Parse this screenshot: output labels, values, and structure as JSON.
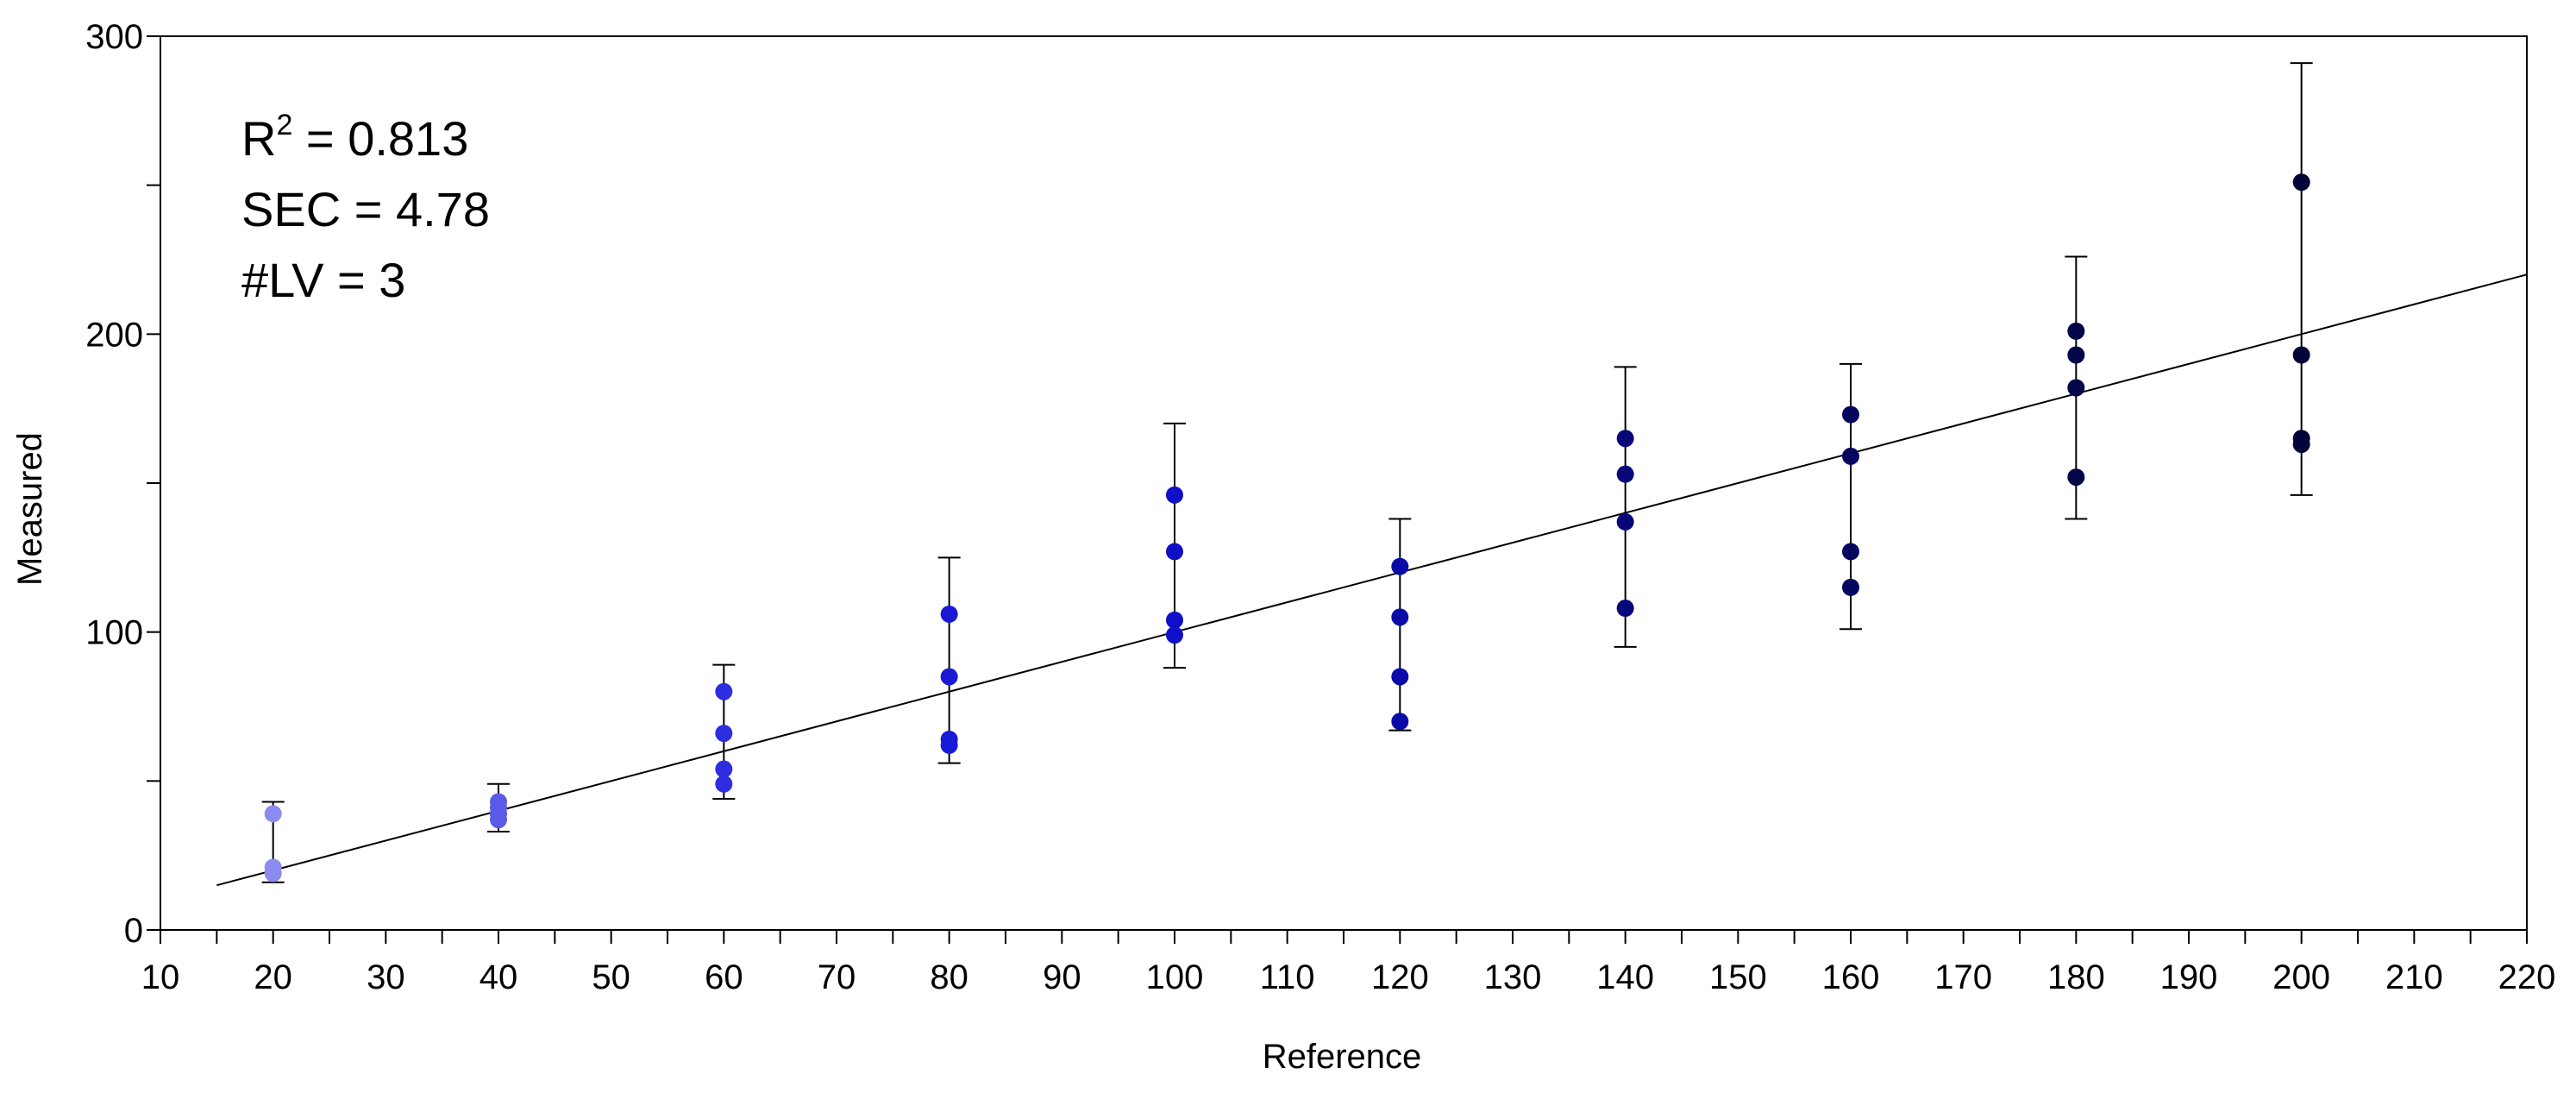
{
  "chart_data": {
    "type": "scatter",
    "title": "",
    "xlabel": "Reference",
    "ylabel": "Measured",
    "xlim": [
      10,
      220
    ],
    "ylim": [
      0,
      300
    ],
    "x_ticks": [
      10,
      20,
      30,
      40,
      50,
      60,
      70,
      80,
      90,
      100,
      110,
      120,
      130,
      140,
      150,
      160,
      170,
      180,
      190,
      200,
      210,
      220
    ],
    "y_ticks": [
      0,
      100,
      200,
      300
    ],
    "grid": false,
    "legend": "none",
    "annotations": {
      "r2_prefix": "R",
      "r2_superscript": "2",
      "r2_value": " = 0.813",
      "sec": "SEC = 4.78",
      "lv": "#LV = 3"
    },
    "fit_line": {
      "x": [
        15,
        220
      ],
      "y": [
        15,
        220
      ]
    },
    "groups": [
      {
        "x": 20,
        "color": "#8c8cf0",
        "values": [
          39,
          21,
          19
        ],
        "error_bar": [
          16,
          43
        ]
      },
      {
        "x": 40,
        "color": "#5a5ae6",
        "values": [
          43,
          41,
          39,
          37
        ],
        "error_bar": [
          33,
          49
        ]
      },
      {
        "x": 60,
        "color": "#2e2ee0",
        "values": [
          80,
          66,
          54,
          49
        ],
        "error_bar": [
          44,
          89
        ]
      },
      {
        "x": 80,
        "color": "#1a1ad6",
        "values": [
          106,
          85,
          64,
          62
        ],
        "error_bar": [
          56,
          125
        ]
      },
      {
        "x": 100,
        "color": "#0f0fc8",
        "values": [
          146,
          127,
          104,
          99
        ],
        "error_bar": [
          88,
          170
        ]
      },
      {
        "x": 120,
        "color": "#0a0aa8",
        "values": [
          122,
          105,
          85,
          70
        ],
        "error_bar": [
          67,
          138
        ]
      },
      {
        "x": 140,
        "color": "#07077a",
        "values": [
          165,
          153,
          137,
          108
        ],
        "error_bar": [
          95,
          189
        ]
      },
      {
        "x": 160,
        "color": "#060660",
        "values": [
          173,
          159,
          127,
          115
        ],
        "error_bar": [
          101,
          190
        ]
      },
      {
        "x": 180,
        "color": "#05054a",
        "values": [
          201,
          193,
          182,
          152
        ],
        "error_bar": [
          138,
          226
        ]
      },
      {
        "x": 200,
        "color": "#040438",
        "values": [
          251,
          193,
          165,
          163
        ],
        "error_bar": [
          146,
          291
        ]
      }
    ]
  }
}
